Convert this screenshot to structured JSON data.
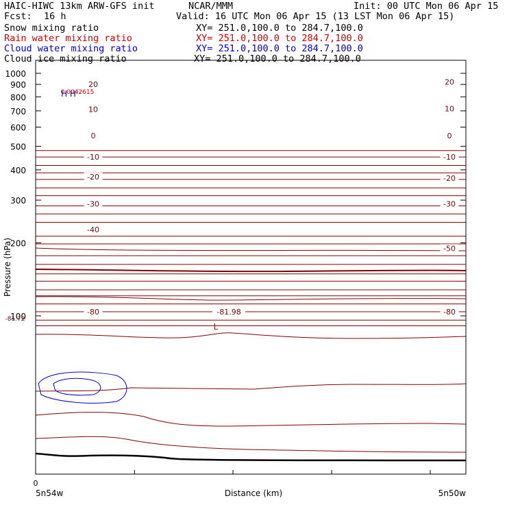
{
  "header": {
    "model": "HAIC-HIWC 13km ARW-GFS init",
    "center": "NCAR/MMM",
    "init": "Init: 00 UTC Mon 06 Apr 15",
    "fcst_label": "Fcst:",
    "fcst_value": "16 h",
    "valid": "Valid: 16 UTC Mon 06 Apr 15 (13 LST Mon 06 Apr 15)",
    "fields": [
      {
        "name": "Snow mixing ratio",
        "xy": "XY= 251.0,100.0 to 284.7,100.0",
        "color": "#000000"
      },
      {
        "name": "Rain water mixing ratio",
        "xy": "XY= 251.0,100.0 to 284.7,100.0",
        "color": "#cc0000"
      },
      {
        "name": "Cloud water mixing ratio",
        "xy": "XY= 251.0,100.0 to 284.7,100.0",
        "color": "#0000cc"
      },
      {
        "name": "Cloud ice mixing ratio",
        "xy": "XY= 251.0,100.0 to 284.7,100.0",
        "color": "#000000"
      }
    ]
  },
  "chart_data": {
    "type": "contour",
    "ylabel": "Pressure (hPa)",
    "xlabel": "Distance (km)",
    "y_scale": "log",
    "ylim": [
      1050,
      75
    ],
    "y_ticks": [
      100,
      200,
      300,
      400,
      500,
      600,
      700,
      800,
      900,
      1000
    ],
    "x_tick_first": "0",
    "x_left_label": "5n54w",
    "x_right_label": "5n50w",
    "temperature_isotherm_color": "#800000",
    "temperature_labels": [
      {
        "text": "-80",
        "p": 104,
        "side": "left"
      },
      {
        "text": "-80",
        "p": 104,
        "side": "right"
      },
      {
        "text": "-81.98",
        "p": 104,
        "side": "center"
      },
      {
        "text": "-50",
        "p": 190,
        "side": "right"
      },
      {
        "text": "-40",
        "p": 227,
        "side": "left"
      },
      {
        "text": "-30",
        "p": 290,
        "side": "left"
      },
      {
        "text": "-30",
        "p": 290,
        "side": "right"
      },
      {
        "text": "-20",
        "p": 375,
        "side": "left"
      },
      {
        "text": "-20",
        "p": 370,
        "side": "right"
      },
      {
        "text": "-10",
        "p": 452,
        "side": "left"
      },
      {
        "text": "-10",
        "p": 452,
        "side": "right"
      },
      {
        "text": "0",
        "p": 554,
        "side": "left"
      },
      {
        "text": "0",
        "p": 554,
        "side": "right"
      },
      {
        "text": "10",
        "p": 711,
        "side": "left"
      },
      {
        "text": "10",
        "p": 716,
        "side": "right"
      },
      {
        "text": "20",
        "p": 900,
        "side": "left"
      },
      {
        "text": "20",
        "p": 922,
        "side": "right"
      }
    ],
    "extrema": [
      {
        "text": "L",
        "p": 90,
        "color": "#cc0000"
      },
      {
        "text": "-81.72",
        "p": 98,
        "color": "#800000"
      },
      {
        "text": "H H",
        "p": 822,
        "color": "#0000cc"
      },
      {
        "text": "0.0042615",
        "p": 844,
        "color": "#cc0000"
      }
    ],
    "surface_color": "#000000"
  }
}
